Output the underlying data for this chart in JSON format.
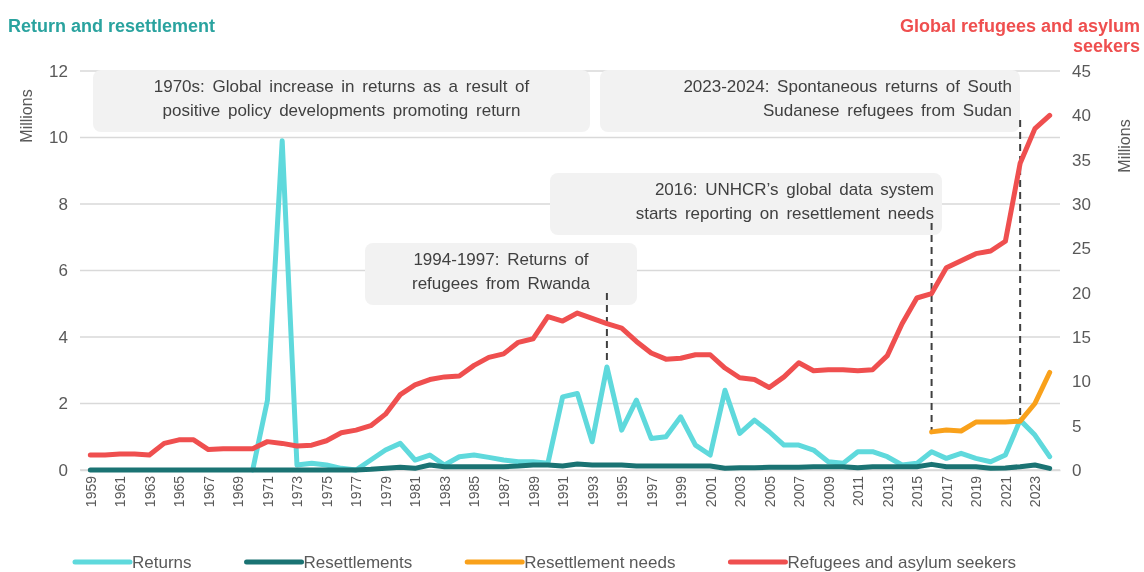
{
  "chart_data": {
    "type": "line",
    "title": "Return and resettlement",
    "subtitle": "Global refugees and asylum seekers",
    "ylabel": "Millions",
    "y2label": "Millions",
    "x": [
      1959,
      1960,
      1961,
      1962,
      1963,
      1964,
      1965,
      1966,
      1967,
      1968,
      1969,
      1970,
      1971,
      1972,
      1973,
      1974,
      1975,
      1976,
      1977,
      1978,
      1979,
      1980,
      1981,
      1982,
      1983,
      1984,
      1985,
      1986,
      1987,
      1988,
      1989,
      1990,
      1991,
      1992,
      1993,
      1994,
      1995,
      1996,
      1997,
      1998,
      1999,
      2000,
      2001,
      2002,
      2003,
      2004,
      2005,
      2006,
      2007,
      2008,
      2009,
      2010,
      2011,
      2012,
      2013,
      2014,
      2015,
      2016,
      2017,
      2018,
      2019,
      2020,
      2021,
      2022,
      2023,
      2024
    ],
    "xlim": [
      1958.3,
      2024.7
    ],
    "xticks": [
      1959,
      1961,
      1963,
      1965,
      1967,
      1969,
      1971,
      1973,
      1975,
      1977,
      1979,
      1981,
      1983,
      1985,
      1987,
      1989,
      1991,
      1993,
      1995,
      1997,
      1999,
      2001,
      2003,
      2005,
      2007,
      2009,
      2011,
      2013,
      2015,
      2017,
      2019,
      2021,
      2023
    ],
    "ylim": [
      0,
      12
    ],
    "yticks": [
      0,
      2,
      4,
      6,
      8,
      10,
      12
    ],
    "y2lim": [
      0,
      45
    ],
    "y2ticks": [
      0,
      5,
      10,
      15,
      20,
      25,
      30,
      35,
      40,
      45
    ],
    "grid": "y",
    "legend": "bottom",
    "line_style": "solid",
    "marker": "none",
    "series": [
      {
        "name": "Returns",
        "color": "#5fd9dc",
        "values": [
          null,
          null,
          null,
          null,
          null,
          null,
          null,
          null,
          null,
          null,
          null,
          0,
          2.1,
          9.9,
          0.15,
          0.2,
          0.15,
          0.05,
          0,
          0.3,
          0.6,
          0.8,
          0.3,
          0.45,
          0.15,
          0.4,
          0.45,
          0.38,
          0.3,
          0.25,
          0.25,
          0.2,
          2.2,
          2.3,
          0.85,
          3.1,
          1.2,
          2.1,
          0.95,
          1.0,
          1.6,
          0.75,
          0.45,
          2.4,
          1.1,
          1.5,
          1.15,
          0.75,
          0.75,
          0.6,
          0.25,
          0.2,
          0.55,
          0.55,
          0.4,
          0.15,
          0.2,
          0.55,
          0.35,
          0.5,
          0.35,
          0.25,
          0.45,
          1.5,
          1.05,
          0.4
        ]
      },
      {
        "name": "Resettlements",
        "color": "#1a7373",
        "values": [
          0,
          0,
          0,
          0,
          0,
          0,
          0,
          0,
          0,
          0,
          0,
          0,
          0,
          0,
          0,
          0,
          0,
          0,
          0,
          0.02,
          0.05,
          0.08,
          0.05,
          0.15,
          0.1,
          0.1,
          0.1,
          0.1,
          0.1,
          0.12,
          0.15,
          0.15,
          0.12,
          0.18,
          0.15,
          0.15,
          0.15,
          0.12,
          0.12,
          0.12,
          0.12,
          0.12,
          0.12,
          0.05,
          0.07,
          0.07,
          0.08,
          0.08,
          0.08,
          0.1,
          0.1,
          0.1,
          0.07,
          0.1,
          0.1,
          0.1,
          0.1,
          0.17,
          0.1,
          0.1,
          0.1,
          0.05,
          0.06,
          0.1,
          0.15,
          0.05
        ]
      },
      {
        "name": "Resettlement needs",
        "color": "#f9a11b",
        "axis": "y2",
        "values": [
          null,
          null,
          null,
          null,
          null,
          null,
          null,
          null,
          null,
          null,
          null,
          null,
          null,
          null,
          null,
          null,
          null,
          null,
          null,
          null,
          null,
          null,
          null,
          null,
          null,
          null,
          null,
          null,
          null,
          null,
          null,
          null,
          null,
          null,
          null,
          null,
          null,
          null,
          null,
          null,
          null,
          null,
          null,
          null,
          null,
          null,
          null,
          null,
          null,
          null,
          null,
          null,
          null,
          null,
          null,
          null,
          null,
          4.3,
          4.5,
          4.4,
          5.4,
          5.4,
          5.4,
          5.5,
          7.5,
          11.0
        ]
      },
      {
        "name": "Refugees and asylum seekers",
        "color": "#ef4f4f",
        "axis": "y2",
        "values": [
          1.7,
          1.7,
          1.8,
          1.8,
          1.7,
          3.0,
          3.4,
          3.4,
          2.3,
          2.4,
          2.4,
          2.4,
          3.2,
          3.0,
          2.7,
          2.8,
          3.3,
          4.2,
          4.5,
          5.0,
          6.3,
          8.5,
          9.6,
          10.2,
          10.5,
          10.6,
          11.8,
          12.7,
          13.1,
          14.4,
          14.8,
          17.3,
          16.8,
          17.7,
          17.1,
          16.5,
          16.0,
          14.5,
          13.2,
          12.5,
          12.6,
          13.0,
          13.0,
          11.5,
          10.4,
          10.2,
          9.3,
          10.5,
          12.1,
          11.2,
          11.3,
          11.3,
          11.2,
          11.3,
          12.9,
          16.5,
          19.4,
          19.9,
          22.8,
          23.6,
          24.4,
          24.7,
          25.8,
          34.6,
          38.5,
          40.0
        ]
      }
    ],
    "annotations": [
      "1970s: Global increase in returns as a result of positive policy developments promoting return",
      {
        "text": "2023-2024: Spontaneous returns of South Sudanese refugees from Sudan",
        "x": 2022,
        "y": 1.5
      },
      {
        "text": "2016: UNHCR’s global data system starts reporting on resettlement needs",
        "x": 2016,
        "y": 1.15
      },
      {
        "text": "1994-1997: Returns of refugees from Rwanda",
        "x": 1994,
        "y": 3.1
      }
    ]
  }
}
